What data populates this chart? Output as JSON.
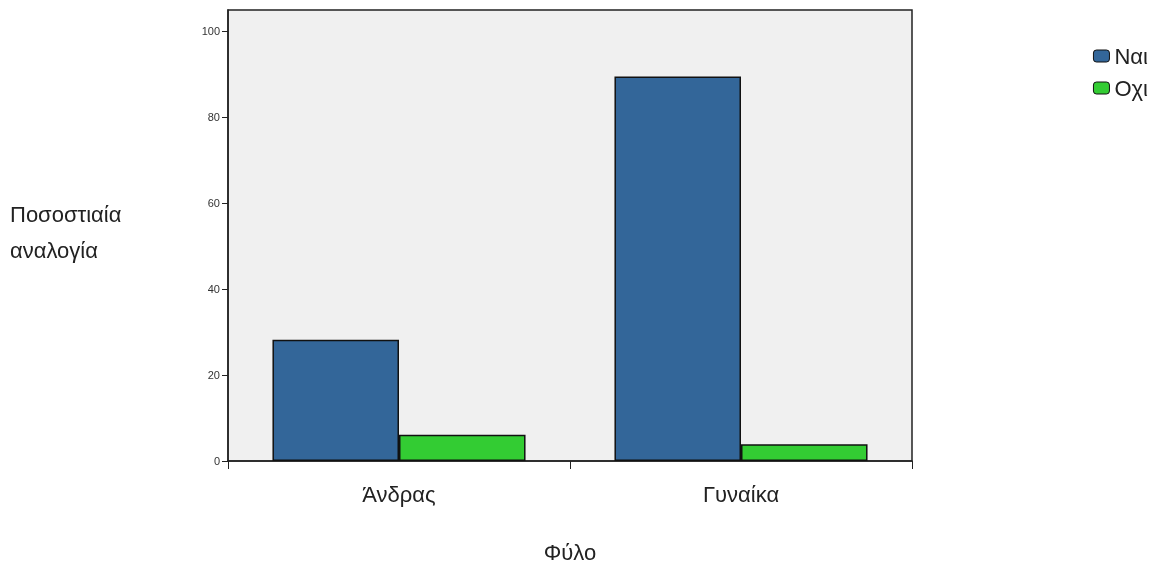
{
  "chart_data": {
    "type": "bar",
    "xlabel": "Φύλο",
    "ylabel": "Ποσοστιαία αναλογία",
    "categories": [
      "Άνδρας",
      "Γυναίκα"
    ],
    "series": [
      {
        "name": "Ναι",
        "color": "#336699",
        "values": [
          28.2,
          89.5
        ]
      },
      {
        "name": "Οχι",
        "color": "#33cc33",
        "values": [
          6.1,
          3.9
        ]
      }
    ],
    "ylim": [
      0,
      105
    ],
    "yticks": [
      0,
      20,
      40,
      60,
      80,
      100
    ],
    "grid": false,
    "legend": "top right"
  }
}
